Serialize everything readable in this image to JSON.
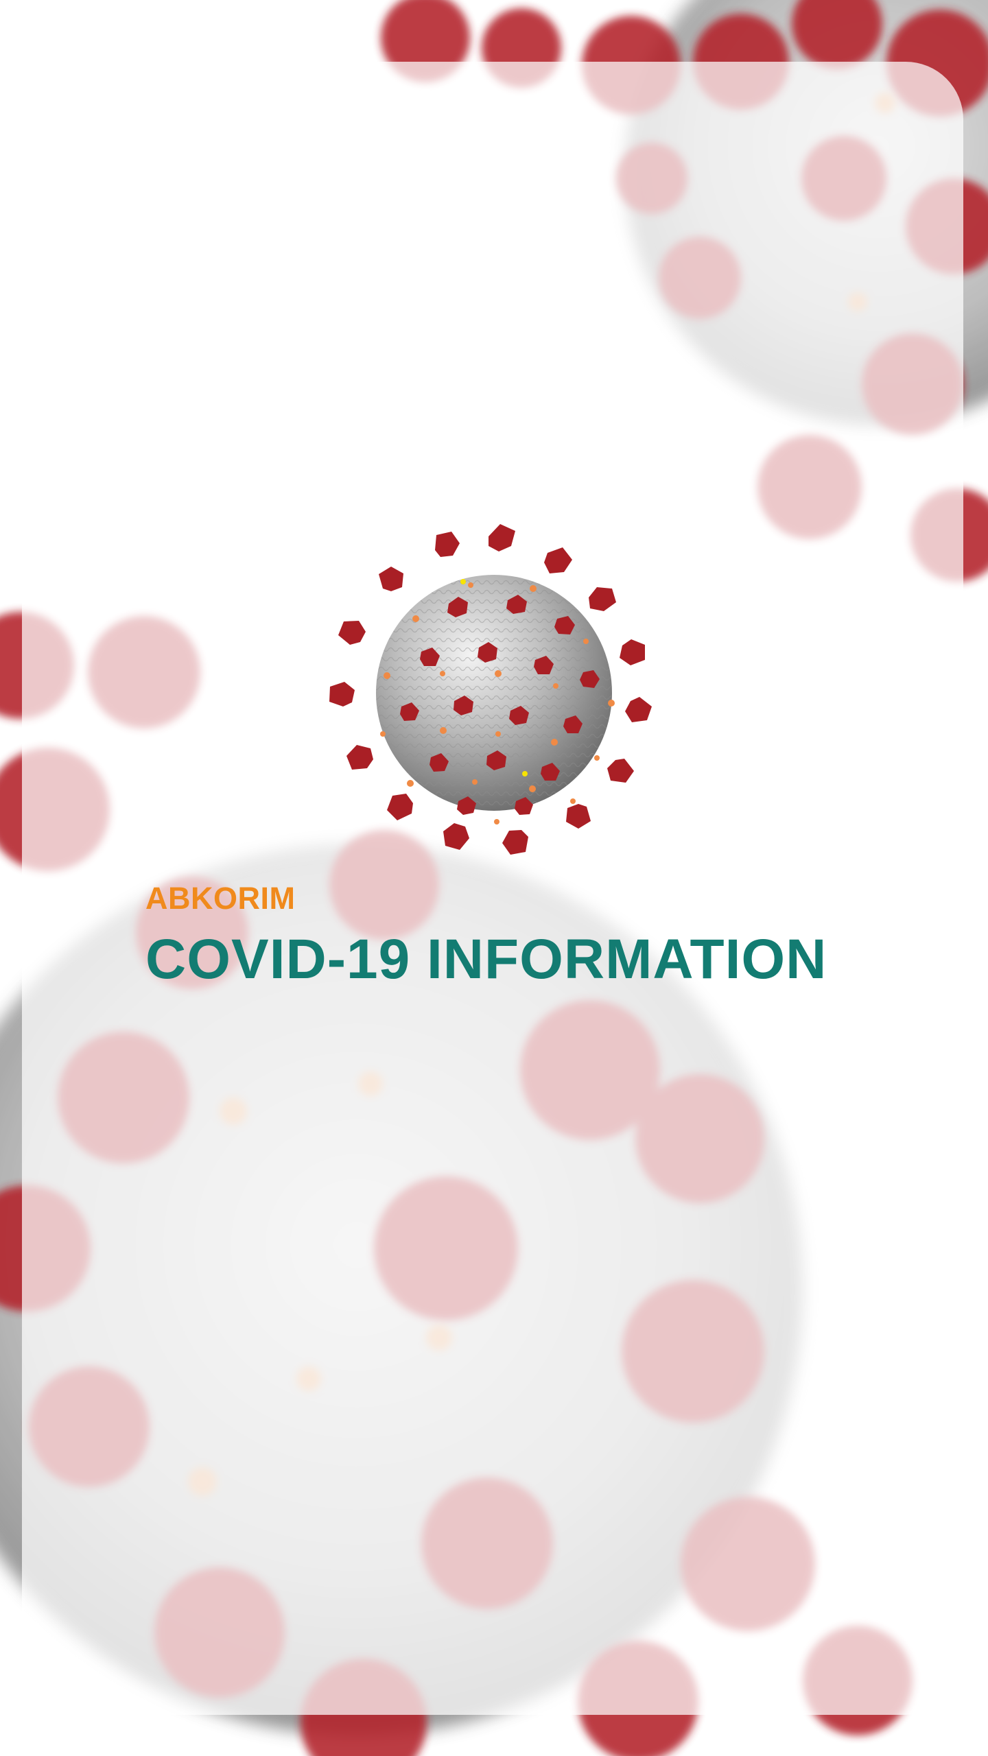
{
  "brand_name": "ABKORIM",
  "page_title": "COVID-19 INFORMATION",
  "colors": {
    "brand": "#f08a1c",
    "title": "#137c72",
    "virus_spike": "#b3212a",
    "virus_body": "#9c9c9c",
    "background": "#ffffff"
  },
  "icons": {
    "hero": "coronavirus-illustration",
    "background": "blurred-coronavirus-pattern"
  }
}
